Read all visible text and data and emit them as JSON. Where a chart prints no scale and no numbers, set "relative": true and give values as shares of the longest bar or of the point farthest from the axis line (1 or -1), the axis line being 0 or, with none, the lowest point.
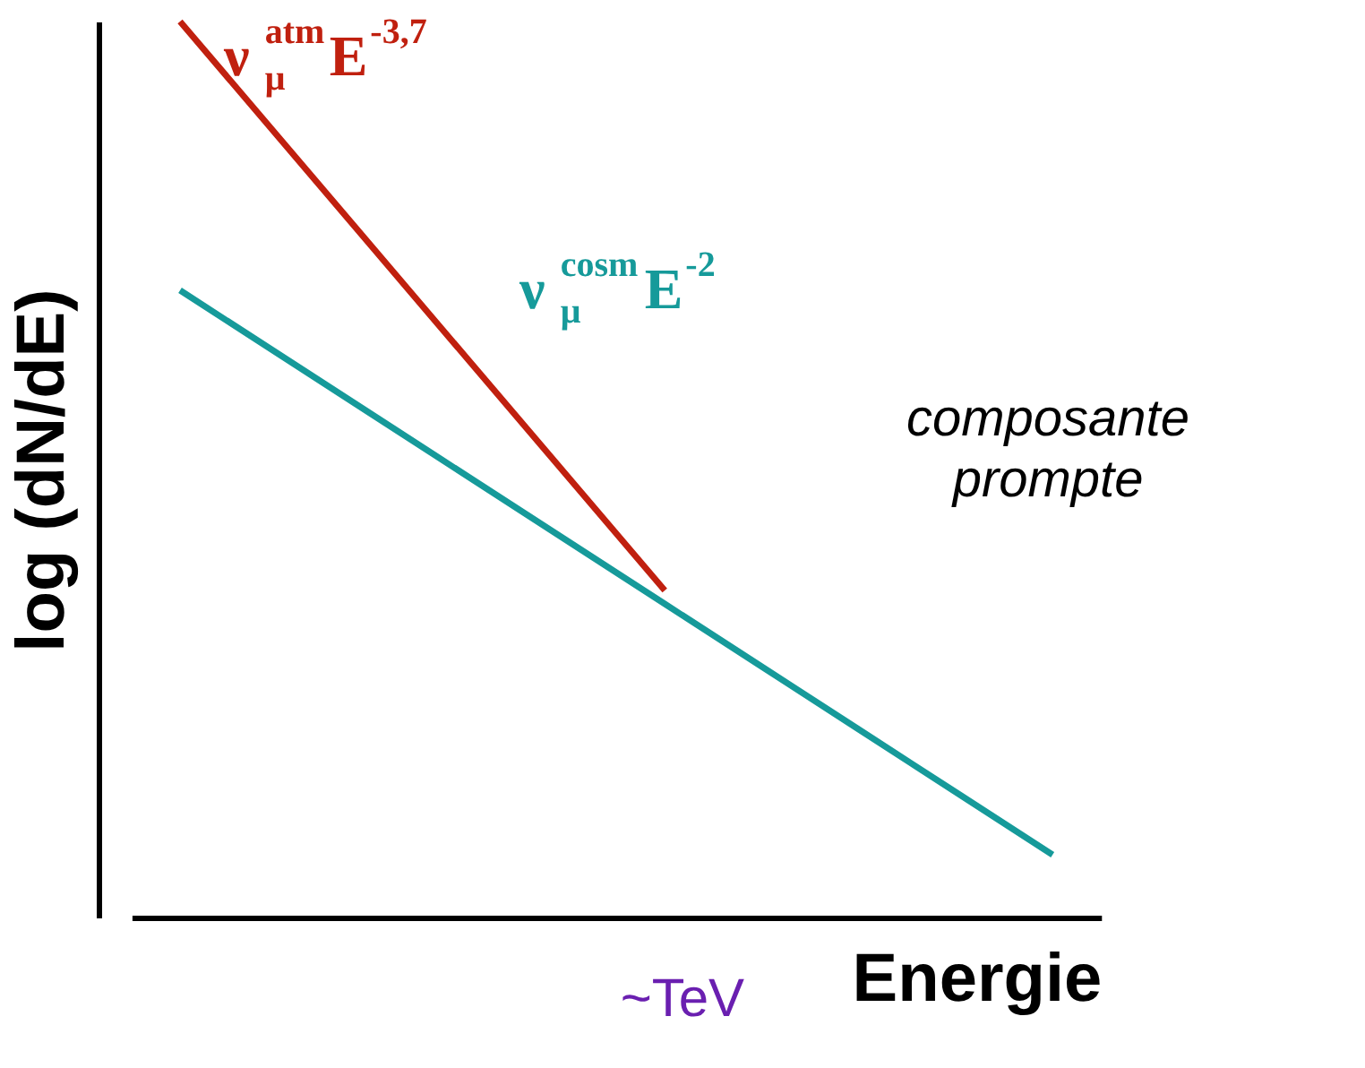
{
  "chart_data": {
    "type": "line",
    "relative": true,
    "xlabel": "Energie",
    "ylabel": "log (dN/dE)",
    "grid": false,
    "legend": false,
    "marker": "none",
    "line_style": "solid",
    "categories": [
      null,
      null,
      null,
      null,
      null,
      null,
      null,
      null,
      null,
      null
    ],
    "series": [
      {
        "name": "ν$^{atm}$$_{μ}$E$^{-3,7}$",
        "color": "#c0200f",
        "values": [
          1.0,
          0.873,
          0.746,
          0.619,
          0.492,
          0.365,
          null,
          null,
          null,
          null
        ]
      },
      {
        "name": "ν$^{cosm}$$_{μ}$E$^{-2}$",
        "color": "#169a9a",
        "values": [
          0.7,
          0.63,
          0.56,
          0.49,
          0.42,
          0.35,
          0.28,
          0.21,
          0.14,
          0.07
        ]
      }
    ],
    "annotations": [
      "composante\nprompte",
      "~TeV"
    ]
  }
}
